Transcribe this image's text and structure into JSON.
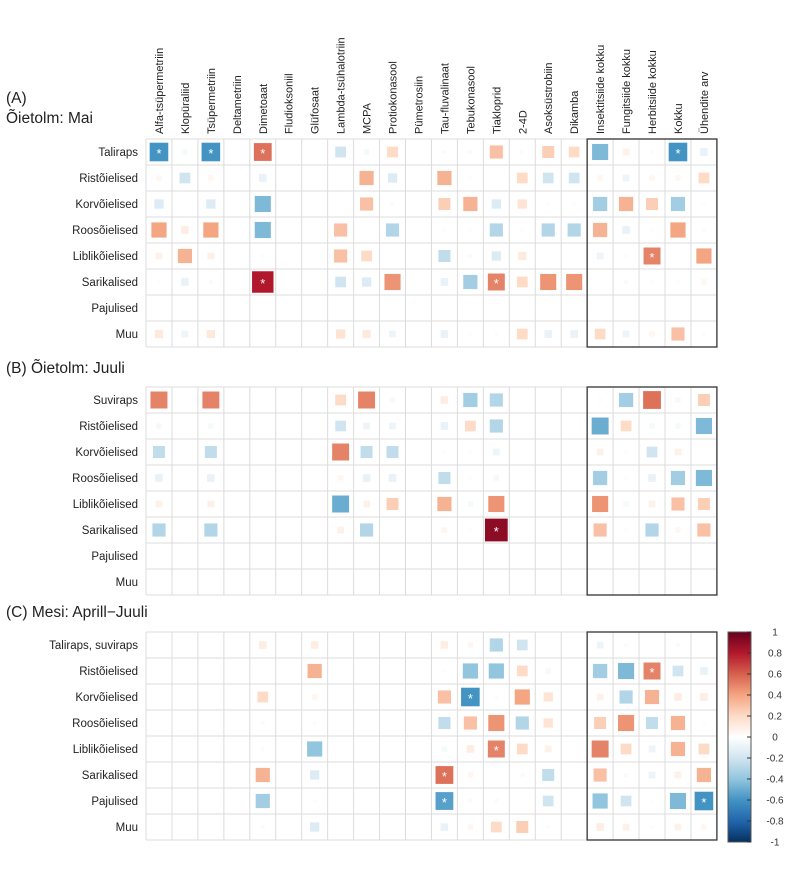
{
  "chart_data": {
    "type": "heatmap",
    "value_range": [
      -1,
      1
    ],
    "color_scale": [
      "#67001F",
      "#B2182B",
      "#D6604D",
      "#F4A582",
      "#FDDBC7",
      "#FFFFFF",
      "#D1E5F0",
      "#92C5DE",
      "#4393C3",
      "#2166AC",
      "#053061"
    ],
    "columns": [
      "Alfa-tsüpermetriin",
      "Klopüraliid",
      "Tsüpermetriin",
      "Deltametriin",
      "Dimetoaat",
      "Fludioksoniil",
      "Glüfosaat",
      "Lambda-tsühalotriin",
      "MCPA",
      "Protiokonasool",
      "Pümetrosiin",
      "Tau-fluvalinaat",
      "Tebukonasool",
      "Tiakloprid",
      "2-4D",
      "Asoksüstrobiin",
      "Dikamba",
      "Insektitsiide kokku",
      "Fungitsiide kokku",
      "Herbitsiide kokku",
      "Kokku",
      "Ühendite arv"
    ],
    "highlighted_columns": [
      "Insektitsiide kokku",
      "Fungitsiide kokku",
      "Herbitsiide kokku",
      "Kokku",
      "Ühendite arv"
    ],
    "colorbar_ticks": [
      "1",
      "0.8",
      "0.6",
      "0.4",
      "0.2",
      "0",
      "-0.2",
      "-0.4",
      "-0.6",
      "-0.8",
      "-1"
    ],
    "significance_marker": "*",
    "panels": [
      {
        "title_lines": [
          "(A)",
          "Õietolm: Mai"
        ],
        "rows": [
          "Taliraps",
          "Ristõielised",
          "Korvõielised",
          "Roosõielised",
          "Liblikõielised",
          "Sarikalised",
          "Pajulised",
          "Muu"
        ],
        "values": [
          [
            -0.6,
            -0.05,
            -0.6,
            0,
            0.55,
            0,
            0,
            -0.2,
            -0.05,
            0.2,
            0,
            0.03,
            -0.03,
            0.3,
            0.02,
            0.25,
            0.2,
            -0.45,
            0.08,
            -0.02,
            -0.6,
            -0.1
          ],
          [
            0.05,
            -0.2,
            0.05,
            0,
            -0.1,
            0,
            0,
            0,
            0.35,
            -0.15,
            0,
            0.35,
            -0.02,
            0,
            0.2,
            -0.2,
            -0.2,
            0.05,
            -0.08,
            0.05,
            0.05,
            0.2
          ],
          [
            -0.15,
            0,
            -0.15,
            0,
            -0.45,
            0,
            0,
            0,
            0.3,
            0.03,
            0,
            0.25,
            0.35,
            -0.15,
            0.15,
            0.02,
            0.02,
            -0.35,
            0.35,
            0.25,
            -0.35,
            0.02
          ],
          [
            0.4,
            0.1,
            0.4,
            0,
            -0.45,
            0,
            0,
            0.3,
            0,
            -0.3,
            0,
            0.02,
            0.02,
            -0.3,
            0.02,
            -0.3,
            -0.3,
            0.35,
            -0.1,
            0.02,
            0.4,
            0.03
          ],
          [
            0.08,
            0.35,
            0.08,
            0,
            0.02,
            0,
            0,
            0.3,
            0.2,
            0,
            0,
            -0.25,
            -0.03,
            -0.15,
            0.12,
            0,
            0,
            -0.08,
            0.02,
            0.5,
            0,
            0.4
          ],
          [
            -0.02,
            -0.1,
            -0.03,
            0,
            0.8,
            0,
            0,
            -0.2,
            -0.15,
            0.45,
            0,
            -0.1,
            -0.35,
            0.5,
            0.2,
            0.45,
            0.45,
            0,
            -0.03,
            0.02,
            0.02,
            0.05
          ],
          [
            0,
            0,
            0,
            0,
            0,
            0,
            0,
            0,
            0,
            0,
            0,
            0,
            0,
            0,
            0,
            0,
            0,
            0,
            0,
            0,
            0,
            0
          ],
          [
            0.12,
            -0.08,
            0.12,
            0,
            0,
            0,
            0,
            0.15,
            0.12,
            -0.08,
            0,
            -0.1,
            -0.02,
            0.02,
            0.2,
            -0.1,
            -0.1,
            0.2,
            -0.08,
            0.05,
            0.3,
            0.02
          ]
        ],
        "significant": [
          [
            0,
            0
          ],
          [
            0,
            2
          ],
          [
            0,
            4
          ],
          [
            0,
            20
          ],
          [
            4,
            19
          ],
          [
            5,
            4
          ],
          [
            5,
            13
          ]
        ]
      },
      {
        "title_lines": [
          "(B) Õietolm: Juuli"
        ],
        "rows": [
          "Suviraps",
          "Ristõielised",
          "Korvõielised",
          "Roosõielised",
          "Liblikõielised",
          "Sarikalised",
          "Pajulised",
          "Muu"
        ],
        "values": [
          [
            0.5,
            0,
            0.5,
            0,
            0,
            0,
            0,
            0.2,
            0.5,
            -0.05,
            0,
            0.1,
            -0.35,
            -0.3,
            0,
            0,
            0,
            0.02,
            -0.35,
            0.55,
            -0.05,
            0.25
          ],
          [
            -0.05,
            0,
            -0.05,
            0,
            0,
            0,
            0,
            -0.2,
            -0.08,
            -0.08,
            0,
            -0.1,
            0.2,
            -0.3,
            0,
            0,
            0,
            -0.5,
            0.2,
            -0.05,
            -0.05,
            -0.45
          ],
          [
            -0.25,
            0,
            -0.25,
            0,
            0,
            0,
            0,
            0.5,
            -0.25,
            -0.25,
            0,
            -0.02,
            0.02,
            -0.08,
            0,
            0,
            0,
            0.08,
            0.02,
            -0.2,
            0.08,
            0
          ],
          [
            -0.1,
            0,
            -0.1,
            0,
            0,
            0,
            0,
            0.05,
            -0.1,
            -0.1,
            0,
            -0.25,
            0.02,
            -0.05,
            0,
            0,
            0,
            -0.35,
            0.02,
            -0.1,
            -0.35,
            -0.45
          ],
          [
            0.08,
            0,
            0.08,
            0,
            0,
            0,
            0,
            -0.5,
            0.08,
            0.25,
            0,
            0.35,
            -0.05,
            0.45,
            0,
            0,
            0,
            0.45,
            -0.05,
            0.08,
            0.3,
            0.25
          ],
          [
            -0.3,
            0,
            -0.3,
            0,
            0,
            0,
            0,
            0.08,
            -0.3,
            0,
            0,
            0.05,
            0.02,
            0.9,
            0,
            0,
            0,
            0.3,
            0.02,
            -0.3,
            0.05,
            0.3
          ],
          [
            0,
            0,
            0,
            0,
            0,
            0,
            0,
            0,
            0,
            0,
            0,
            0,
            0,
            0,
            0,
            0,
            0,
            0,
            0,
            0,
            0,
            0
          ],
          [
            0,
            0,
            0,
            0,
            0,
            0,
            0,
            0,
            0,
            0,
            0,
            0,
            0,
            0,
            0,
            0,
            0,
            0,
            0,
            0,
            0,
            0
          ]
        ],
        "significant": [
          [
            5,
            13
          ]
        ]
      },
      {
        "title_lines": [
          "(C) Mesi: Aprill−Juuli"
        ],
        "rows": [
          "Taliraps, suviraps",
          "Ristõielised",
          "Korvõielised",
          "Roosõielised",
          "Liblikõielised",
          "Sarikalised",
          "Pajulised",
          "Muu"
        ],
        "values": [
          [
            0,
            0,
            0,
            0,
            0.1,
            0,
            0.1,
            0,
            0,
            0,
            0,
            0.1,
            0.05,
            -0.3,
            -0.2,
            0,
            0,
            -0.08,
            0.03,
            0,
            -0.03,
            0
          ],
          [
            0,
            0,
            0,
            0,
            0,
            0,
            0.35,
            0,
            0,
            0,
            0,
            0.02,
            -0.4,
            -0.4,
            0.2,
            -0.05,
            0,
            -0.35,
            -0.45,
            0.5,
            -0.2,
            -0.1
          ],
          [
            0,
            0,
            0,
            0,
            0.2,
            0,
            0.05,
            0,
            0,
            0,
            0,
            0.3,
            -0.6,
            0.02,
            0.4,
            0.15,
            0,
            0.08,
            -0.3,
            0.35,
            0.1,
            0.1
          ],
          [
            0,
            0,
            0,
            0,
            -0.03,
            0,
            -0.02,
            0,
            0,
            0,
            0,
            -0.25,
            0.3,
            0.45,
            -0.3,
            0.15,
            0,
            0.25,
            0.45,
            -0.25,
            0.35,
            0.02
          ],
          [
            0,
            0,
            0,
            0,
            0.02,
            0,
            -0.4,
            0,
            0,
            0,
            0,
            -0.05,
            0.1,
            0.5,
            0.2,
            0.08,
            0,
            0.5,
            0.2,
            -0.08,
            0.35,
            0.2
          ],
          [
            0,
            0,
            0,
            0,
            0.35,
            0,
            -0.15,
            0,
            0,
            0,
            0,
            0.55,
            0.05,
            0,
            0.03,
            -0.25,
            0,
            0.3,
            -0.03,
            -0.08,
            0.08,
            0.35
          ],
          [
            0,
            0,
            0,
            0,
            -0.35,
            0,
            -0.02,
            0,
            0,
            0,
            0,
            -0.55,
            -0.03,
            -0.03,
            0,
            -0.2,
            0,
            -0.4,
            -0.2,
            -0.02,
            -0.45,
            -0.6
          ],
          [
            0,
            0,
            0,
            0,
            -0.03,
            0,
            -0.15,
            0,
            0,
            0,
            0,
            -0.1,
            0.05,
            0.2,
            0.25,
            0.02,
            0,
            0.1,
            0.08,
            0.02,
            0.08,
            0.05
          ]
        ],
        "significant": [
          [
            1,
            19
          ],
          [
            2,
            12
          ],
          [
            4,
            13
          ],
          [
            5,
            11
          ],
          [
            6,
            11
          ],
          [
            6,
            21
          ]
        ]
      }
    ]
  }
}
